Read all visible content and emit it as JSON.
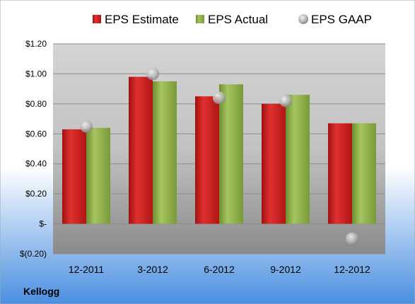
{
  "chart_data": {
    "type": "bar",
    "categories": [
      "12-2011",
      "3-2012",
      "6-2012",
      "9-2012",
      "12-2012"
    ],
    "series": [
      {
        "name": "EPS Estimate",
        "kind": "bar",
        "color": "#cc1f1f",
        "values": [
          0.63,
          0.98,
          0.85,
          0.8,
          0.67
        ]
      },
      {
        "name": "EPS Actual",
        "kind": "bar",
        "color": "#8fb04a",
        "values": [
          0.64,
          0.95,
          0.93,
          0.86,
          0.67
        ]
      },
      {
        "name": "EPS GAAP",
        "kind": "marker",
        "color": "#b8b8b8",
        "values": [
          0.65,
          1.0,
          0.84,
          0.82,
          -0.1
        ]
      }
    ],
    "yticks": [
      1.2,
      1.0,
      0.8,
      0.6,
      0.4,
      0.2,
      0,
      -0.2
    ],
    "ytick_labels": [
      "$1.20",
      "$1.00",
      "$0.80",
      "$0.60",
      "$0.40",
      "$0.20",
      "$-",
      "$(0.20)"
    ],
    "ylim": [
      -0.2,
      1.2
    ],
    "grid": true,
    "legend_position": "top",
    "title": "",
    "xlabel": "",
    "ylabel": ""
  },
  "footer_label": "Kellogg"
}
